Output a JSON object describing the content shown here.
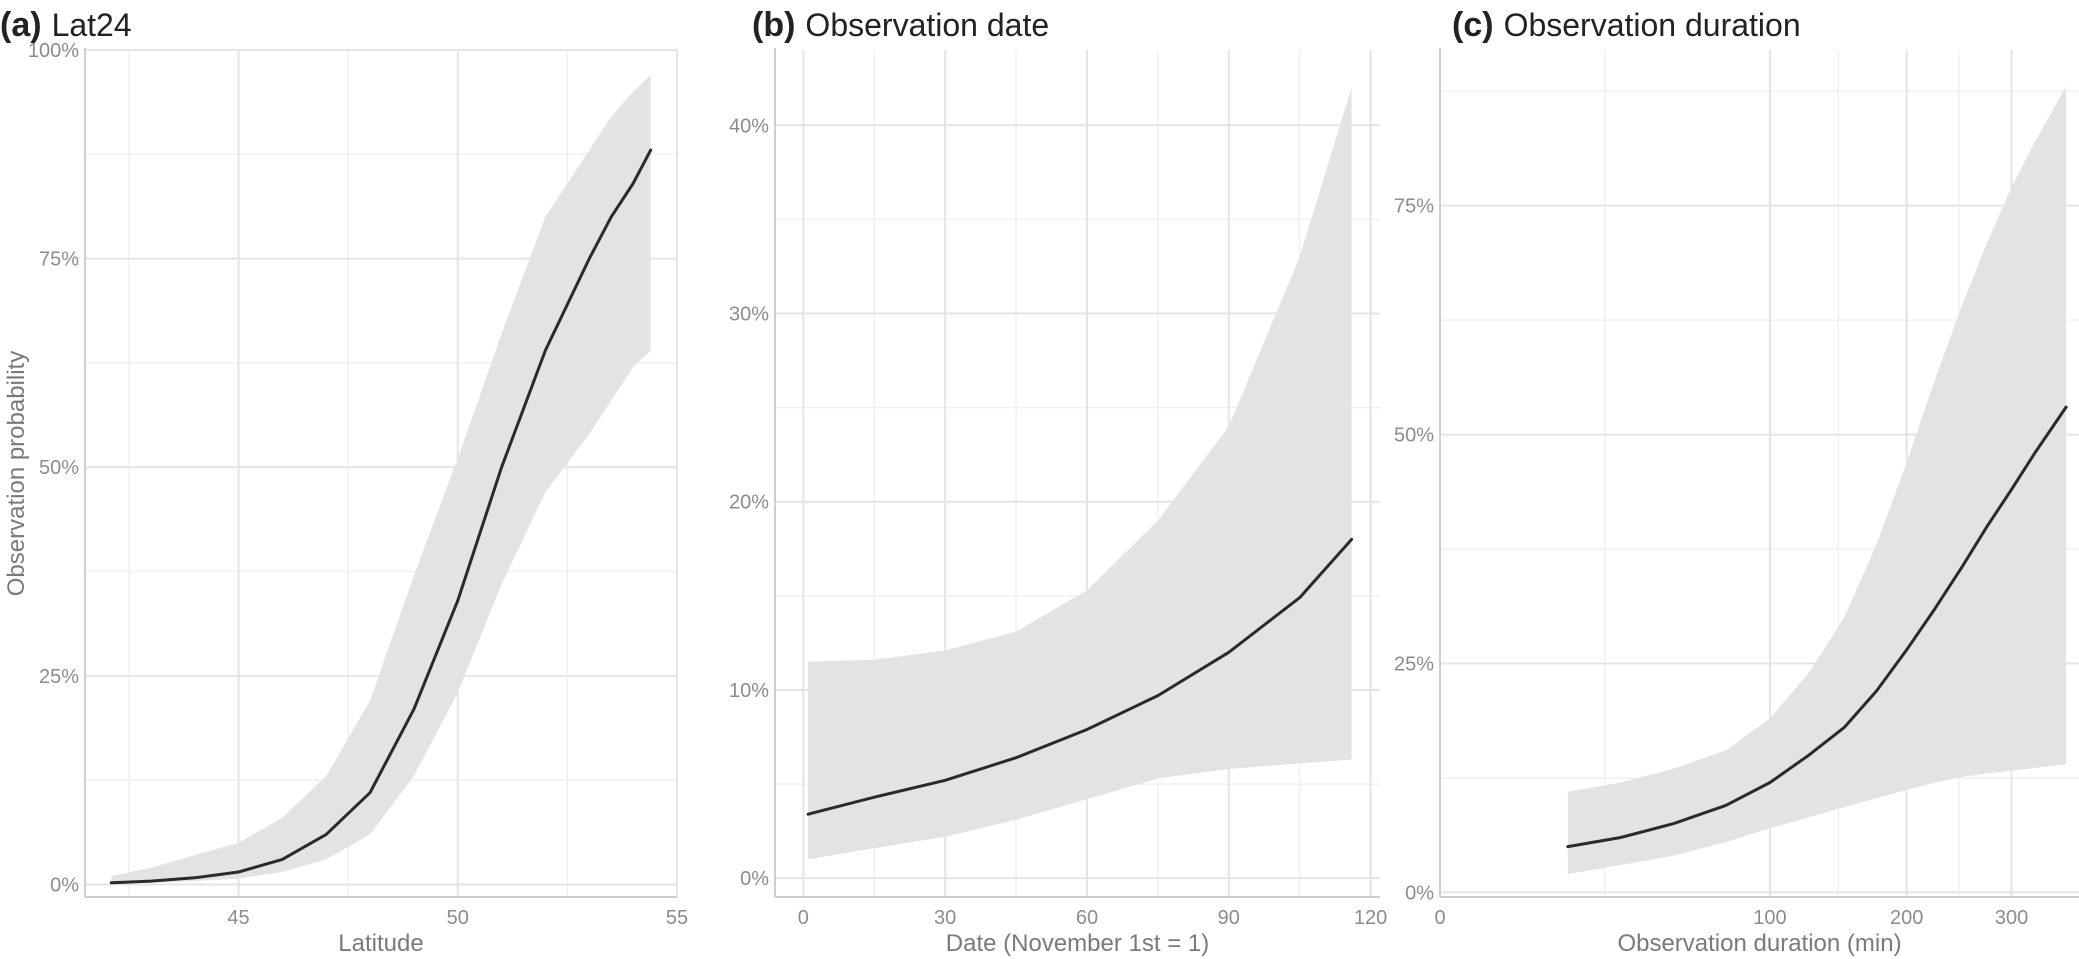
{
  "colors": {
    "ribbon": "#e3e3e3",
    "line": "#2a2a2a",
    "grid": "#e4e4e4",
    "text": "#8c8c8c"
  },
  "chart_data": [
    {
      "type": "line",
      "letter": "(a)",
      "title": "Lat24",
      "xlabel": "Latitude",
      "ylabel": "Observation probability",
      "xlim": [
        41.5,
        55
      ],
      "ylim": [
        -0.015,
        1.0
      ],
      "xticks": [
        45,
        50,
        55
      ],
      "xtick_labels": [
        "45",
        "50",
        "55"
      ],
      "yticks": [
        0,
        0.25,
        0.5,
        0.75,
        1.0
      ],
      "ytick_labels": [
        "0%",
        "25%",
        "50%",
        "75%",
        "100%"
      ],
      "grid": true,
      "x": [
        42.1,
        43,
        44,
        45,
        46,
        47,
        48,
        49,
        50,
        51,
        52,
        53,
        53.5,
        54,
        54.4
      ],
      "y": [
        0.002,
        0.004,
        0.008,
        0.015,
        0.03,
        0.06,
        0.11,
        0.21,
        0.34,
        0.5,
        0.64,
        0.75,
        0.8,
        0.84,
        0.88
      ],
      "lower": [
        0.001,
        0.002,
        0.004,
        0.007,
        0.015,
        0.03,
        0.06,
        0.13,
        0.23,
        0.36,
        0.47,
        0.54,
        0.58,
        0.62,
        0.64
      ],
      "upper": [
        0.01,
        0.02,
        0.035,
        0.05,
        0.08,
        0.13,
        0.22,
        0.37,
        0.51,
        0.66,
        0.8,
        0.88,
        0.92,
        0.95,
        0.97
      ]
    },
    {
      "type": "line",
      "letter": "(b)",
      "title": "Observation date",
      "xlabel": "Date (November 1st = 1)",
      "ylabel": "",
      "xlim": [
        -6,
        122
      ],
      "ylim": [
        -0.01,
        0.44
      ],
      "xticks": [
        0,
        30,
        60,
        90,
        120
      ],
      "xtick_labels": [
        "0",
        "30",
        "60",
        "90",
        "120"
      ],
      "yticks": [
        0,
        0.1,
        0.2,
        0.3,
        0.4
      ],
      "ytick_labels": [
        "0%",
        "10%",
        "20%",
        "30%",
        "40%"
      ],
      "grid": true,
      "x": [
        1,
        15,
        30,
        45,
        60,
        75,
        90,
        105,
        116
      ],
      "y": [
        0.034,
        0.043,
        0.052,
        0.064,
        0.079,
        0.097,
        0.12,
        0.149,
        0.18
      ],
      "lower": [
        0.01,
        0.016,
        0.022,
        0.031,
        0.042,
        0.053,
        0.058,
        0.061,
        0.063
      ],
      "upper": [
        0.115,
        0.116,
        0.121,
        0.131,
        0.153,
        0.19,
        0.24,
        0.33,
        0.42
      ]
    },
    {
      "type": "line",
      "letter": "(c)",
      "title": "Observation duration",
      "xlabel": "Observation duration (min)",
      "ylabel": "",
      "xscale": "sqrt",
      "xlim": [
        0,
        375
      ],
      "ylim": [
        -0.005,
        0.92
      ],
      "xticks": [
        0,
        100,
        200,
        300
      ],
      "xtick_labels": [
        "0",
        "100",
        "200",
        "300"
      ],
      "yticks": [
        0,
        0.25,
        0.5,
        0.75
      ],
      "ytick_labels": [
        "0%",
        "25%",
        "50%",
        "75%"
      ],
      "grid": true,
      "x": [
        15,
        30,
        50,
        75,
        100,
        125,
        150,
        175,
        200,
        225,
        250,
        275,
        300,
        325,
        360
      ],
      "y": [
        0.05,
        0.06,
        0.075,
        0.095,
        0.12,
        0.15,
        0.18,
        0.22,
        0.265,
        0.31,
        0.355,
        0.4,
        0.44,
        0.48,
        0.53
      ],
      "lower": [
        0.02,
        0.03,
        0.04,
        0.055,
        0.07,
        0.082,
        0.093,
        0.103,
        0.112,
        0.12,
        0.126,
        0.13,
        0.133,
        0.136,
        0.14
      ],
      "upper": [
        0.11,
        0.12,
        0.135,
        0.155,
        0.19,
        0.24,
        0.3,
        0.38,
        0.47,
        0.56,
        0.64,
        0.71,
        0.77,
        0.82,
        0.88
      ]
    }
  ]
}
